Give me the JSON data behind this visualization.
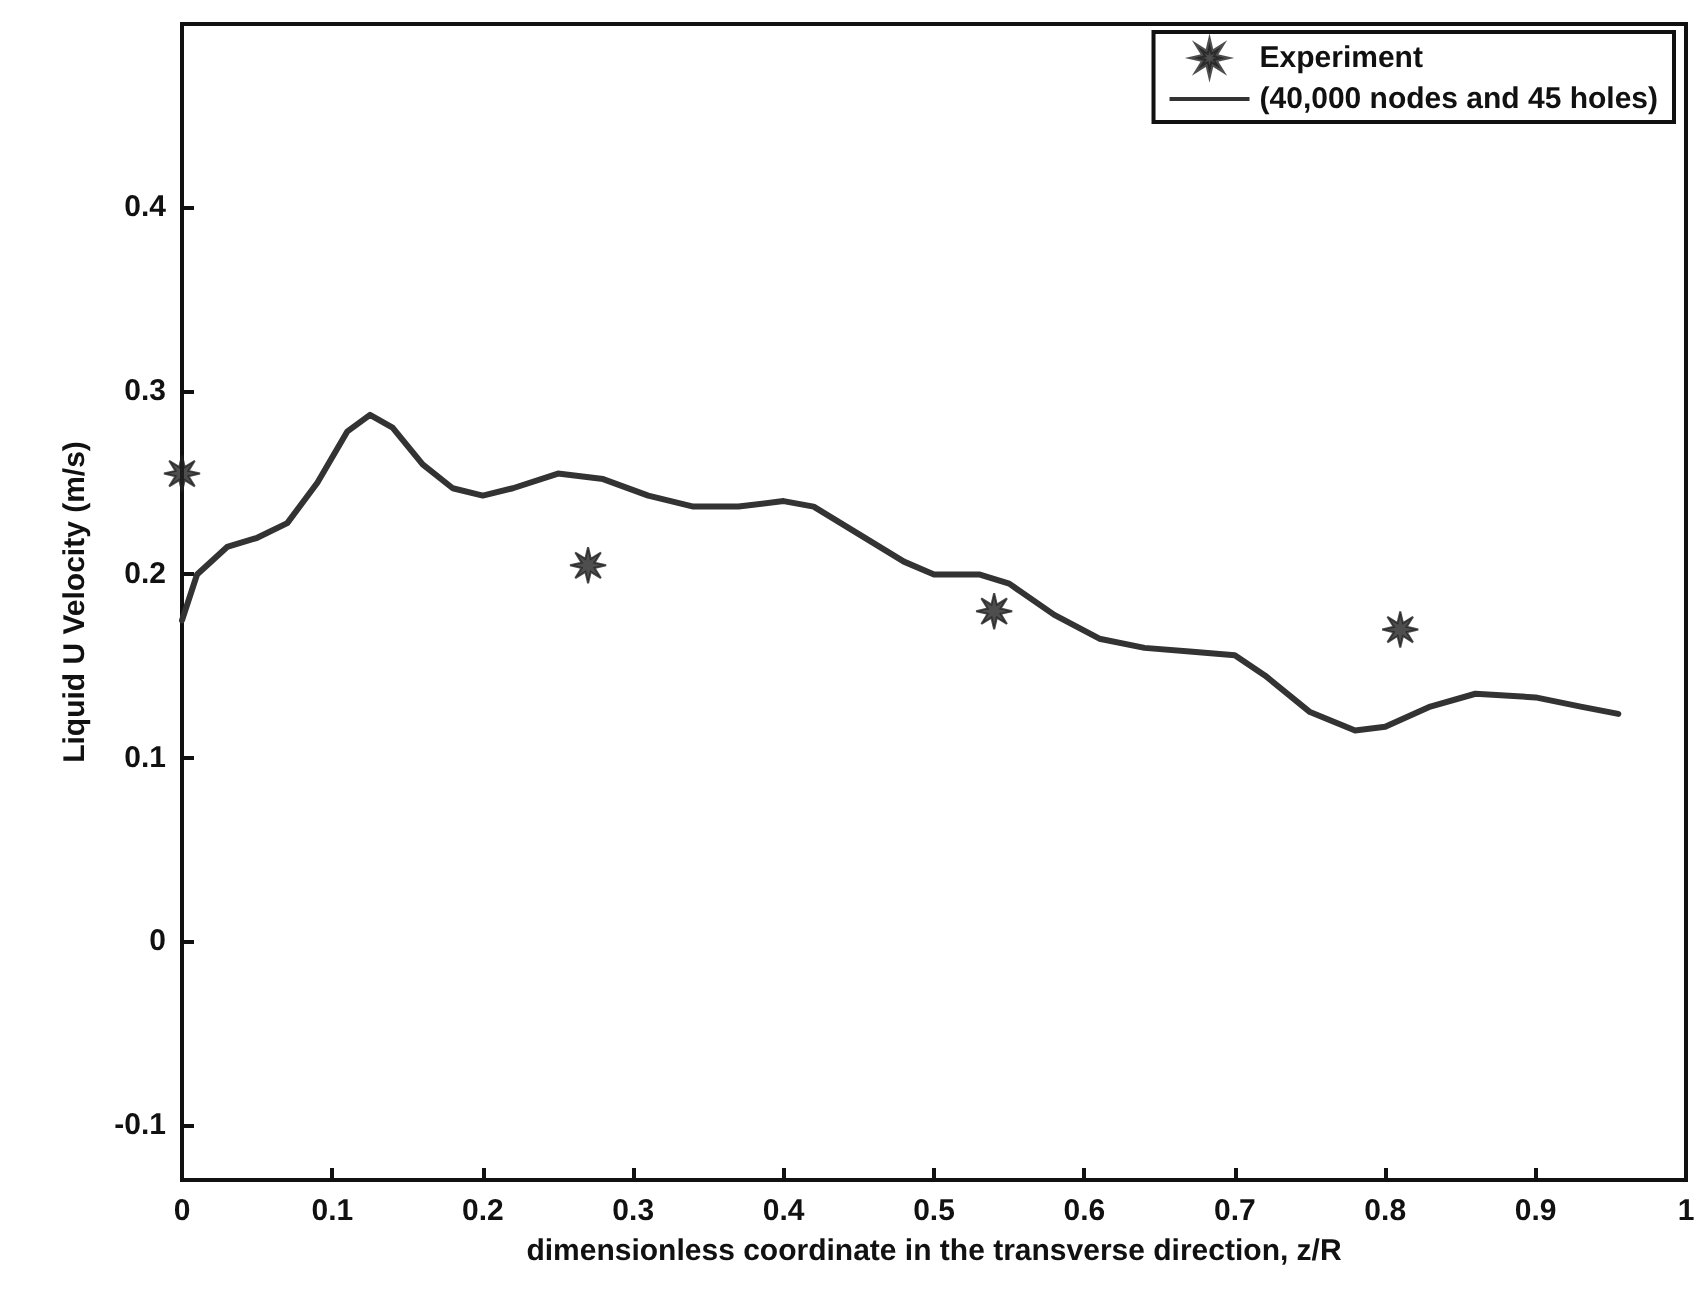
{
  "chart_data": {
    "type": "line",
    "xlabel": "dimensionless coordinate in the transverse direction, z/R",
    "ylabel": "Liquid U Velocity (m/s)",
    "xlim": [
      0,
      1
    ],
    "xticks": [
      0,
      0.1,
      0.2,
      0.3,
      0.4,
      0.5,
      0.6,
      0.7,
      0.8,
      0.9,
      1
    ],
    "ylim": [
      -0.13,
      0.5
    ],
    "yticks": [
      -0.1,
      0,
      0.1,
      0.2,
      0.3,
      0.4
    ],
    "grid": false,
    "legend": "top right",
    "series": [
      {
        "name": "Experiment",
        "type": "scatter",
        "marker": "star",
        "color": "#222222",
        "x": [
          0,
          0.27,
          0.54,
          0.81
        ],
        "values": [
          0.255,
          0.205,
          0.18,
          0.17
        ]
      },
      {
        "name": "(40,000 nodes and 45 holes)",
        "marker": "none",
        "line_style": "solid",
        "color": "#333333",
        "x": [
          0,
          0.01,
          0.03,
          0.05,
          0.07,
          0.09,
          0.11,
          0.125,
          0.14,
          0.16,
          0.18,
          0.2,
          0.22,
          0.25,
          0.28,
          0.31,
          0.34,
          0.37,
          0.4,
          0.42,
          0.45,
          0.48,
          0.5,
          0.53,
          0.55,
          0.58,
          0.61,
          0.64,
          0.67,
          0.7,
          0.72,
          0.75,
          0.78,
          0.8,
          0.83,
          0.86,
          0.9,
          0.93,
          0.955
        ],
        "values": [
          0.175,
          0.2,
          0.215,
          0.22,
          0.228,
          0.25,
          0.278,
          0.287,
          0.28,
          0.26,
          0.247,
          0.243,
          0.247,
          0.255,
          0.252,
          0.243,
          0.237,
          0.237,
          0.24,
          0.237,
          0.222,
          0.207,
          0.2,
          0.2,
          0.195,
          0.178,
          0.165,
          0.16,
          0.158,
          0.156,
          0.145,
          0.125,
          0.115,
          0.117,
          0.128,
          0.135,
          0.133,
          0.128,
          0.124
        ]
      }
    ]
  }
}
